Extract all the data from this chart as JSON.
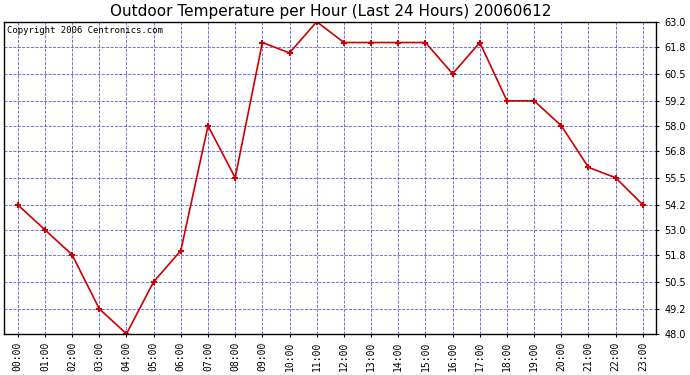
{
  "title": "Outdoor Temperature per Hour (Last 24 Hours) 20060612",
  "copyright": "Copyright 2006 Centronics.com",
  "x_labels": [
    "00:00",
    "01:00",
    "02:00",
    "03:00",
    "04:00",
    "05:00",
    "06:00",
    "07:00",
    "08:00",
    "09:00",
    "10:00",
    "11:00",
    "12:00",
    "13:00",
    "14:00",
    "15:00",
    "16:00",
    "17:00",
    "18:00",
    "19:00",
    "20:00",
    "21:00",
    "22:00",
    "23:00"
  ],
  "y_values": [
    54.2,
    53.0,
    51.8,
    49.2,
    48.0,
    50.5,
    52.0,
    58.0,
    55.5,
    62.0,
    61.5,
    63.0,
    62.0,
    62.0,
    62.0,
    62.0,
    60.5,
    62.0,
    59.2,
    59.2,
    58.0,
    56.0,
    55.5,
    54.2
  ],
  "ylim": [
    48.0,
    63.0
  ],
  "yticks": [
    48.0,
    49.2,
    50.5,
    51.8,
    53.0,
    54.2,
    55.5,
    56.8,
    58.0,
    59.2,
    60.5,
    61.8,
    63.0
  ],
  "line_color": "#cc0000",
  "marker": "+",
  "marker_color": "#cc0000",
  "plot_bg_color": "#ffffff",
  "grid_color": "#3333cc",
  "border_color": "#000000",
  "title_fontsize": 11,
  "axis_label_fontsize": 7,
  "copyright_fontsize": 6.5,
  "figsize": [
    6.9,
    3.75
  ],
  "dpi": 100
}
